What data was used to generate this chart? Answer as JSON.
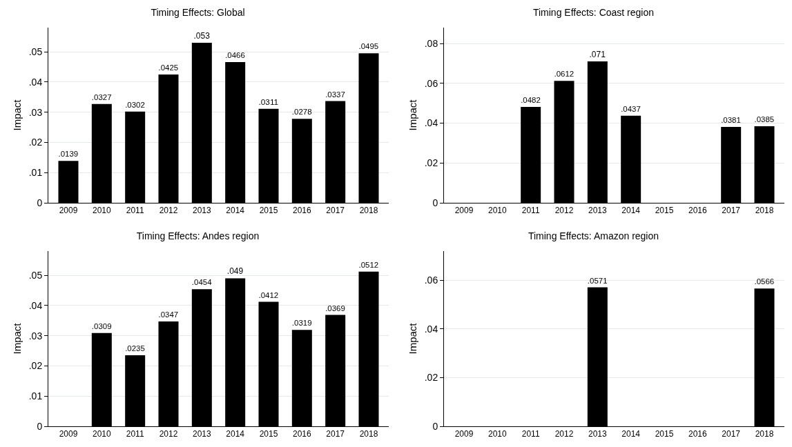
{
  "chart_data": [
    {
      "type": "bar",
      "title": "Timing Effects: Global",
      "ylabel": "Impact",
      "categories": [
        "2009",
        "2010",
        "2011",
        "2012",
        "2013",
        "2014",
        "2015",
        "2016",
        "2017",
        "2018"
      ],
      "color": "#000000",
      "values": [
        0.0139,
        0.0327,
        0.0302,
        0.0425,
        0.053,
        0.0466,
        0.0311,
        0.0278,
        0.0337,
        0.0495
      ],
      "value_labels": [
        ".0139",
        ".0327",
        ".0302",
        ".0425",
        ".053",
        ".0466",
        ".0311",
        ".0278",
        ".0337",
        ".0495"
      ],
      "ylim": [
        0,
        0.058
      ],
      "yticks": [
        {
          "value": 0,
          "label": "0"
        },
        {
          "value": 0.01,
          "label": ".01"
        },
        {
          "value": 0.02,
          "label": ".02"
        },
        {
          "value": 0.03,
          "label": ".03"
        },
        {
          "value": 0.04,
          "label": ".04"
        },
        {
          "value": 0.05,
          "label": ".05"
        }
      ],
      "grid": "y"
    },
    {
      "type": "bar",
      "title": "Timing Effects: Coast region",
      "ylabel": "Impact",
      "categories": [
        "2009",
        "2010",
        "2011",
        "2012",
        "2013",
        "2014",
        "2015",
        "2016",
        "2017",
        "2018"
      ],
      "color": "#000000",
      "values": [
        null,
        null,
        0.0482,
        0.0612,
        0.071,
        0.0437,
        null,
        null,
        0.0381,
        0.0385
      ],
      "value_labels": [
        null,
        null,
        ".0482",
        ".0612",
        ".071",
        ".0437",
        null,
        null,
        ".0381",
        ".0385"
      ],
      "ylim": [
        0,
        0.088
      ],
      "yticks": [
        {
          "value": 0,
          "label": "0"
        },
        {
          "value": 0.02,
          "label": ".02"
        },
        {
          "value": 0.04,
          "label": ".04"
        },
        {
          "value": 0.06,
          "label": ".06"
        },
        {
          "value": 0.08,
          "label": ".08"
        }
      ],
      "grid": "y"
    },
    {
      "type": "bar",
      "title": "Timing Effects: Andes region",
      "ylabel": "Impact",
      "categories": [
        "2009",
        "2010",
        "2011",
        "2012",
        "2013",
        "2014",
        "2015",
        "2016",
        "2017",
        "2018"
      ],
      "color": "#000000",
      "values": [
        null,
        0.0309,
        0.0235,
        0.0347,
        0.0454,
        0.049,
        0.0412,
        0.0319,
        0.0369,
        0.0512
      ],
      "value_labels": [
        null,
        ".0309",
        ".0235",
        ".0347",
        ".0454",
        ".049",
        ".0412",
        ".0319",
        ".0369",
        ".0512"
      ],
      "ylim": [
        0,
        0.058
      ],
      "yticks": [
        {
          "value": 0,
          "label": "0"
        },
        {
          "value": 0.01,
          "label": ".01"
        },
        {
          "value": 0.02,
          "label": ".02"
        },
        {
          "value": 0.03,
          "label": ".03"
        },
        {
          "value": 0.04,
          "label": ".04"
        },
        {
          "value": 0.05,
          "label": ".05"
        }
      ],
      "grid": "y"
    },
    {
      "type": "bar",
      "title": "Timing Effects: Amazon region",
      "ylabel": "Impact",
      "categories": [
        "2009",
        "2010",
        "2011",
        "2012",
        "2013",
        "2014",
        "2015",
        "2016",
        "2017",
        "2018"
      ],
      "color": "#000000",
      "values": [
        null,
        null,
        null,
        null,
        0.0571,
        null,
        null,
        null,
        null,
        0.0566
      ],
      "value_labels": [
        null,
        null,
        null,
        null,
        ".0571",
        null,
        null,
        null,
        null,
        ".0566"
      ],
      "ylim": [
        0,
        0.072
      ],
      "yticks": [
        {
          "value": 0,
          "label": "0"
        },
        {
          "value": 0.02,
          "label": ".02"
        },
        {
          "value": 0.04,
          "label": ".04"
        },
        {
          "value": 0.06,
          "label": ".06"
        }
      ],
      "grid": "y"
    }
  ]
}
